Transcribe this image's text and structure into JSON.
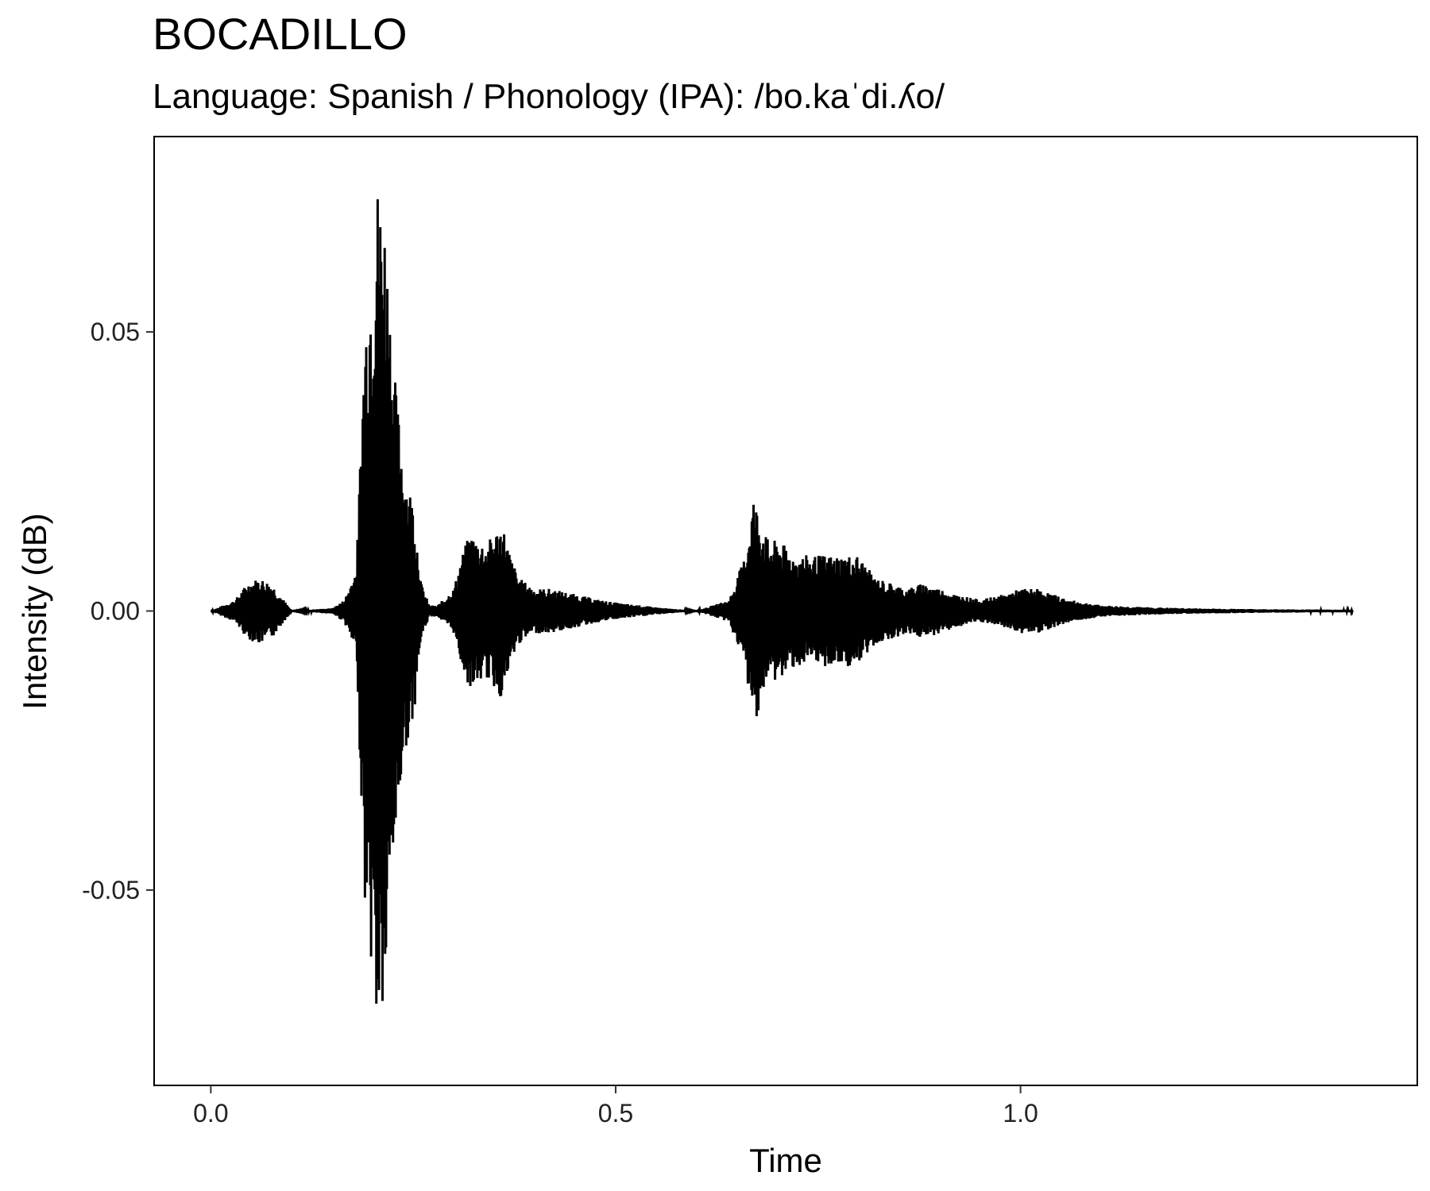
{
  "chart_data": {
    "type": "line",
    "title": "BOCADILLO",
    "subtitle": "Language: Spanish / Phonology (IPA): /bo.kaˈdi.ʎo/",
    "xlabel": "Time",
    "ylabel": "Intensity (dB)",
    "xlim": [
      -0.07,
      1.49
    ],
    "ylim": [
      -0.085,
      0.085
    ],
    "x_ticks": [
      0.0,
      0.5,
      1.0
    ],
    "x_tick_labels": [
      "0.0",
      "0.5",
      "1.0"
    ],
    "y_ticks": [
      -0.05,
      0.0,
      0.05
    ],
    "y_tick_labels": [
      "-0.05",
      "0.00",
      "0.05"
    ],
    "grid": false,
    "line_color": "#000000",
    "series": [
      {
        "x": [
          0.0,
          0.03,
          0.045,
          0.06,
          0.075,
          0.09,
          0.1,
          0.15,
          0.165,
          0.18,
          0.185,
          0.19,
          0.195,
          0.2,
          0.205,
          0.21,
          0.215,
          0.22,
          0.225,
          0.23,
          0.235,
          0.24,
          0.25,
          0.26,
          0.27,
          0.28,
          0.3,
          0.31,
          0.32,
          0.33,
          0.34,
          0.35,
          0.36,
          0.37,
          0.38,
          0.39,
          0.4,
          0.42,
          0.45,
          0.48,
          0.5,
          0.53,
          0.56,
          0.6,
          0.64,
          0.66,
          0.67,
          0.68,
          0.69,
          0.7,
          0.72,
          0.74,
          0.76,
          0.78,
          0.8,
          0.82,
          0.84,
          0.86,
          0.88,
          0.9,
          0.92,
          0.95,
          0.98,
          1.0,
          1.02,
          1.04,
          1.06,
          1.08,
          1.1,
          1.15,
          1.2,
          1.3,
          1.41
        ],
        "envelope": [
          0.0,
          0.002,
          0.005,
          0.006,
          0.005,
          0.002,
          0.0,
          0.0005,
          0.002,
          0.008,
          0.03,
          0.052,
          0.06,
          0.066,
          0.078,
          0.076,
          0.072,
          0.06,
          0.046,
          0.038,
          0.032,
          0.025,
          0.02,
          0.005,
          0.001,
          0.001,
          0.004,
          0.01,
          0.014,
          0.013,
          0.012,
          0.014,
          0.016,
          0.01,
          0.006,
          0.005,
          0.004,
          0.004,
          0.003,
          0.002,
          0.0015,
          0.001,
          0.0005,
          0.0,
          0.002,
          0.01,
          0.021,
          0.016,
          0.012,
          0.013,
          0.01,
          0.01,
          0.01,
          0.01,
          0.01,
          0.006,
          0.005,
          0.004,
          0.005,
          0.004,
          0.003,
          0.002,
          0.003,
          0.004,
          0.004,
          0.003,
          0.002,
          0.0015,
          0.001,
          0.0007,
          0.0005,
          0.0003,
          0.0002
        ]
      }
    ]
  }
}
